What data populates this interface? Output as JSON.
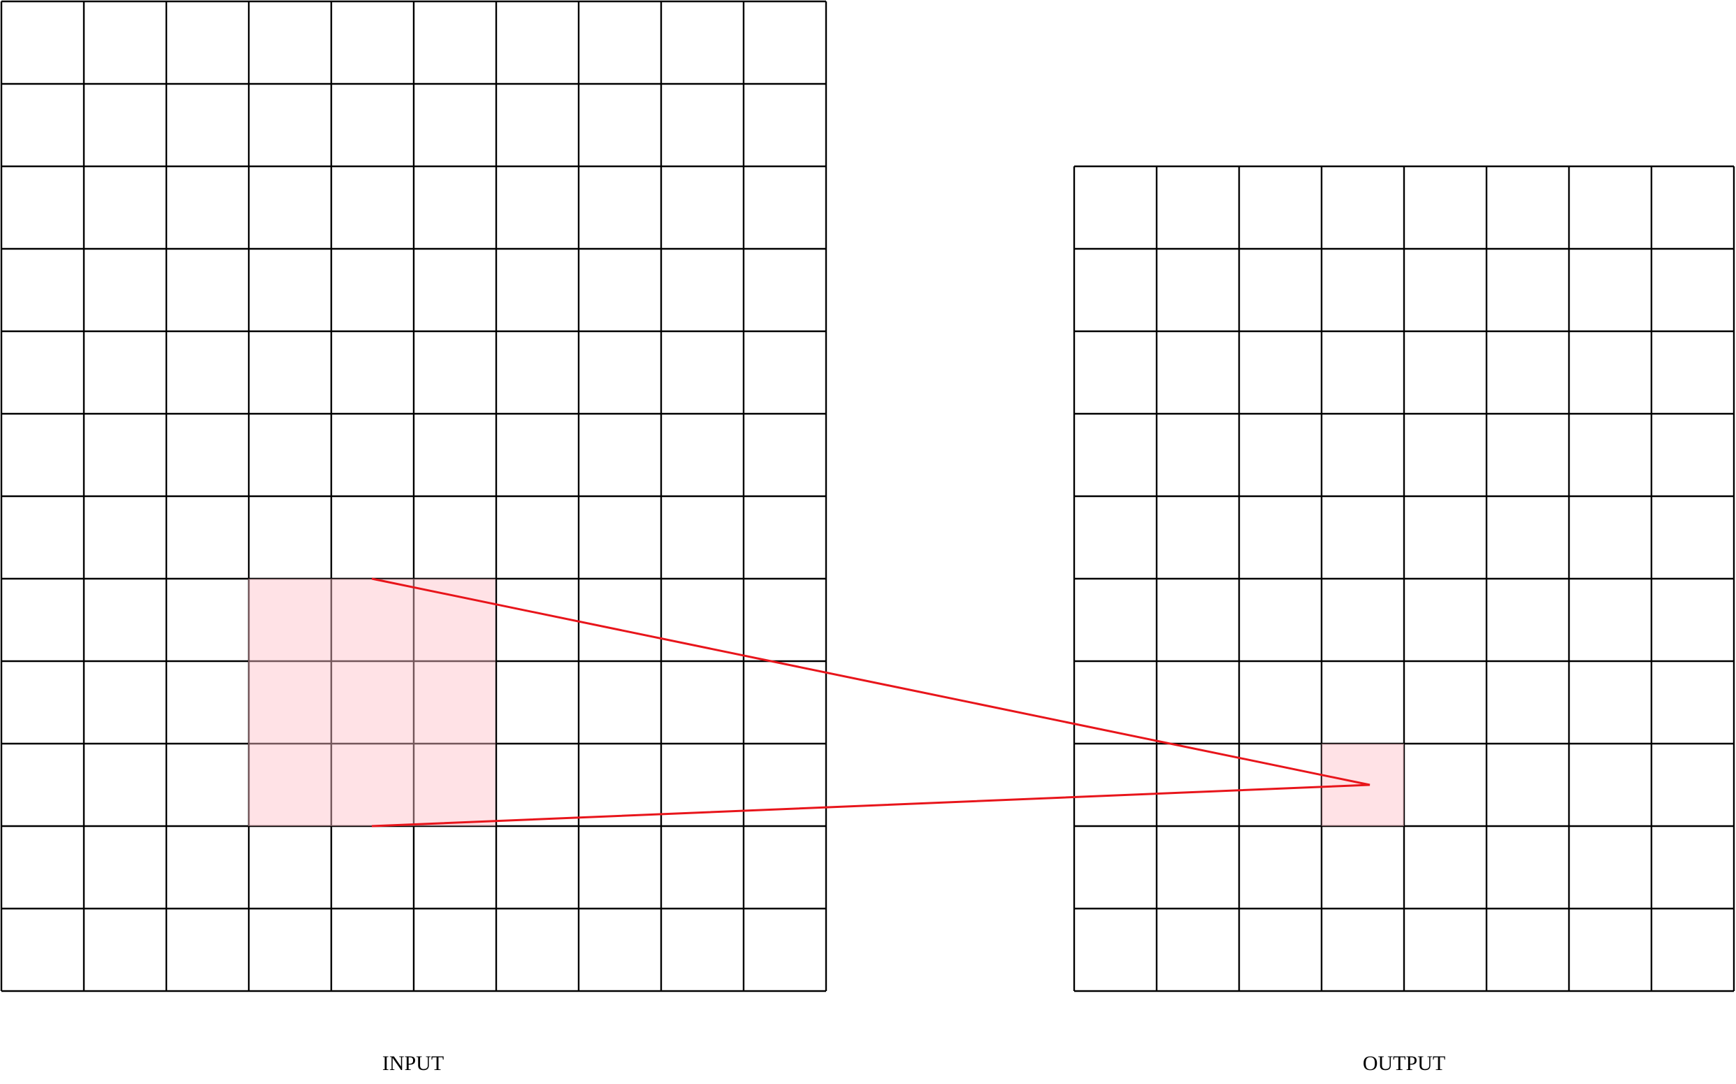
{
  "input": {
    "label": "INPUT"
  },
  "output": {
    "label": "OUTPUT"
  }
}
